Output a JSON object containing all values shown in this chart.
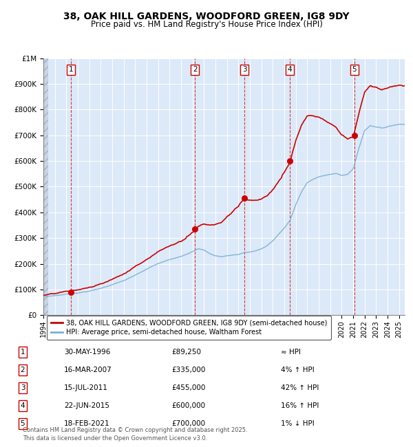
{
  "title": "38, OAK HILL GARDENS, WOODFORD GREEN, IG8 9DY",
  "subtitle": "Price paid vs. HM Land Registry's House Price Index (HPI)",
  "legend_line1": "38, OAK HILL GARDENS, WOODFORD GREEN, IG8 9DY (semi-detached house)",
  "legend_line2": "HPI: Average price, semi-detached house, Waltham Forest",
  "footer": "Contains HM Land Registry data © Crown copyright and database right 2025.\nThis data is licensed under the Open Government Licence v3.0.",
  "transactions": [
    {
      "num": 1,
      "date": "30-MAY-1996",
      "price": 89250,
      "hpi_note": "≈ HPI",
      "year": 1996.41
    },
    {
      "num": 2,
      "date": "16-MAR-2007",
      "price": 335000,
      "hpi_note": "4% ↑ HPI",
      "year": 2007.21
    },
    {
      "num": 3,
      "date": "15-JUL-2011",
      "price": 455000,
      "hpi_note": "42% ↑ HPI",
      "year": 2011.54
    },
    {
      "num": 4,
      "date": "22-JUN-2015",
      "price": 600000,
      "hpi_note": "16% ↑ HPI",
      "year": 2015.47
    },
    {
      "num": 5,
      "date": "18-FEB-2021",
      "price": 700000,
      "hpi_note": "1% ↓ HPI",
      "year": 2021.12
    }
  ],
  "xlim": [
    1994,
    2025.5
  ],
  "ylim": [
    0,
    1000000
  ],
  "yticks": [
    0,
    100000,
    200000,
    300000,
    400000,
    500000,
    600000,
    700000,
    800000,
    900000,
    1000000
  ],
  "ytick_labels": [
    "£0",
    "£100K",
    "£200K",
    "£300K",
    "£400K",
    "£500K",
    "£600K",
    "£700K",
    "£800K",
    "£900K",
    "£1M"
  ],
  "xticks": [
    1994,
    1995,
    1996,
    1997,
    1998,
    1999,
    2000,
    2001,
    2002,
    2003,
    2004,
    2005,
    2006,
    2007,
    2008,
    2009,
    2010,
    2011,
    2012,
    2013,
    2014,
    2015,
    2016,
    2017,
    2018,
    2019,
    2020,
    2021,
    2022,
    2023,
    2024,
    2025
  ],
  "plot_bg": "#dce9f8",
  "red_color": "#cc0000",
  "blue_color": "#7aadd4"
}
